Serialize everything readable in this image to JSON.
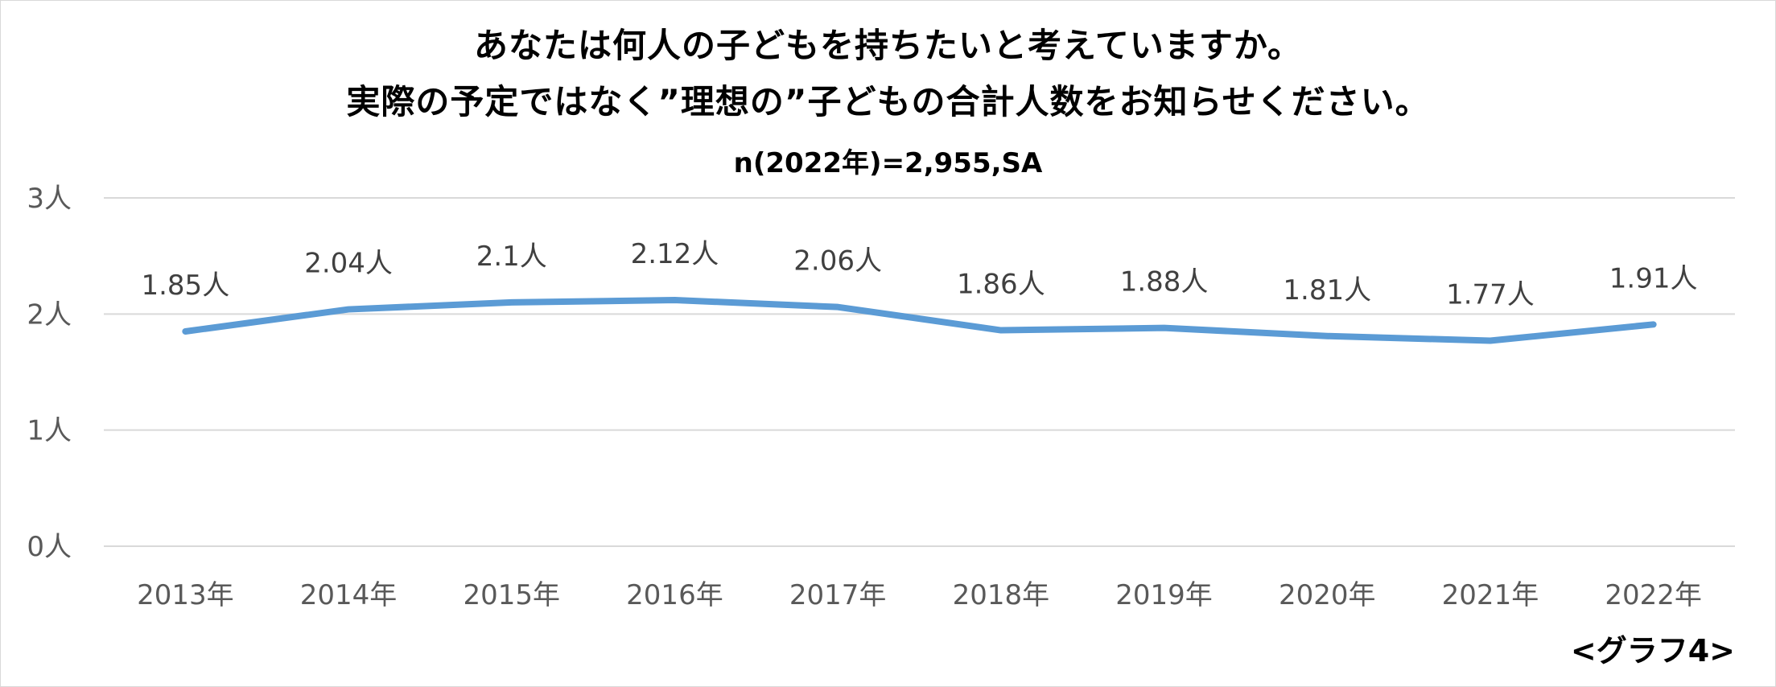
{
  "title_lines": [
    "あなたは何人の子どもを持ちたいと考えていますか。",
    "実際の予定ではなく”理想の”子どもの合計人数をお知らせください。"
  ],
  "subtitle": "n(2022年)=2,955,SA",
  "figure_label": "<グラフ4>",
  "colors": {
    "line": "#5b9bd5",
    "grid": "#d9d9d9",
    "axis_text": "#595959"
  },
  "chart_data": {
    "type": "line",
    "categories": [
      "2013年",
      "2014年",
      "2015年",
      "2016年",
      "2017年",
      "2018年",
      "2019年",
      "2020年",
      "2021年",
      "2022年"
    ],
    "series": [
      {
        "values": [
          1.85,
          2.04,
          2.1,
          2.12,
          2.06,
          1.86,
          1.88,
          1.81,
          1.77,
          1.91
        ],
        "labels": [
          "1.85人",
          "2.04人",
          "2.1人",
          "2.12人",
          "2.06人",
          "1.86人",
          "1.88人",
          "1.81人",
          "1.77人",
          "1.91人"
        ]
      }
    ],
    "yticks": [
      0,
      1,
      2,
      3
    ],
    "ytick_labels": [
      "0人",
      "1人",
      "2人",
      "3人"
    ],
    "ylim": [
      0,
      3
    ],
    "grid": true,
    "legend": "none"
  }
}
